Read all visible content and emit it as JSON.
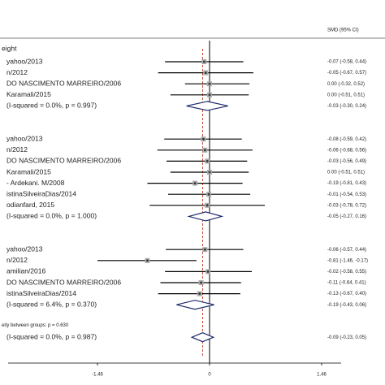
{
  "chart_data": {
    "type": "forest",
    "header": "SMD (95% CI)",
    "xlim": [
      -1.46,
      1.46
    ],
    "xticks": [
      -1.46,
      0,
      1.46
    ],
    "groups": [
      {
        "label": "eight",
        "rows": [
          {
            "label": "yahoo/2013",
            "value": -0.07,
            "ci": [
              -0.58,
              0.44
            ],
            "value_label": "-0.07 (-0.58, 0.44)"
          },
          {
            "label": "n/2012",
            "value": -0.05,
            "ci": [
              -0.67,
              0.57
            ],
            "value_label": "-0.05 (-0.67, 0.57)"
          },
          {
            "label": "DO NASCIMENTO MARREIRO/2006",
            "value": 0.0,
            "ci": [
              -0.32,
              0.52
            ],
            "value_label": "0.00 (-0.32, 0.52)"
          },
          {
            "label": "Karamali/2015",
            "value": 0.0,
            "ci": [
              -0.51,
              0.51
            ],
            "value_label": "0.00 (-0.51, 0.51)"
          }
        ],
        "subtotal": {
          "label": "(I-squared = 0.0%, p = 0.997)",
          "value": -0.03,
          "ci": [
            -0.3,
            0.24
          ],
          "value_label": "-0.03 (-0.30, 0.24)"
        }
      },
      {
        "rows": [
          {
            "label": "yahoo/2013",
            "value": -0.08,
            "ci": [
              -0.59,
              0.42
            ],
            "value_label": "-0.08 (-0.59, 0.42)"
          },
          {
            "label": "n/2012",
            "value": -0.06,
            "ci": [
              -0.68,
              0.56
            ],
            "value_label": "-0.06 (-0.68, 0.56)"
          },
          {
            "label": "DO NASCIMENTO MARREIRO/2006",
            "value": -0.03,
            "ci": [
              -0.56,
              0.49
            ],
            "value_label": "-0.03 (-0.56, 0.49)"
          },
          {
            "label": "Karamali/2015",
            "value": 0.0,
            "ci": [
              -0.51,
              0.51
            ],
            "value_label": "0.00 (-0.51, 0.51)"
          },
          {
            "label": "- Ardekani. M/2008",
            "value": -0.19,
            "ci": [
              -0.81,
              0.43
            ],
            "value_label": "-0.19 (-0.81, 0.43)"
          },
          {
            "label": "istinaSilveiraDias/2014",
            "value": -0.01,
            "ci": [
              -0.54,
              0.53
            ],
            "value_label": "-0.01 (-0.54, 0.53)"
          },
          {
            "label": "odianfard, 2015",
            "value": -0.03,
            "ci": [
              -0.78,
              0.72
            ],
            "value_label": "-0.03 (-0.78, 0.72)"
          }
        ],
        "subtotal": {
          "label": "(I-squared = 0.0%, p = 1.000)",
          "value": -0.05,
          "ci": [
            -0.27,
            0.16
          ],
          "value_label": "-0.05 (-0.27, 0.16)"
        }
      },
      {
        "rows": [
          {
            "label": "yahoo/2013",
            "value": -0.06,
            "ci": [
              -0.57,
              0.44
            ],
            "value_label": "-0.06 (-0.57, 0.44)"
          },
          {
            "label": "n/2012",
            "value": -0.81,
            "ci": [
              -1.46,
              -0.17
            ],
            "value_label": "-0.81 (-1.46, -0.17)"
          },
          {
            "label": "amilian/2016",
            "value": -0.02,
            "ci": [
              -0.58,
              0.55
            ],
            "value_label": "-0.02 (-0.58, 0.55)"
          },
          {
            "label": "DO NASCIMENTO MARREIRO/2006",
            "value": -0.11,
            "ci": [
              -0.64,
              0.41
            ],
            "value_label": "-0.11 (-0.64, 0.41)"
          },
          {
            "label": "istinaSilveiraDias/2014",
            "value": -0.13,
            "ci": [
              -0.67,
              0.4
            ],
            "value_label": "-0.13 (-0.67, 0.40)"
          }
        ],
        "subtotal": {
          "label": "(I-squared = 6.4%, p = 0.370)",
          "value": -0.19,
          "ci": [
            -0.43,
            0.06
          ],
          "value_label": "-0.19 (-0.43, 0.06)"
        }
      }
    ],
    "heterogeneity": "eity between groups: p = 0.630",
    "overall": {
      "label": "(I-squared = 0.0%, p = 0.987)",
      "value": -0.09,
      "ci": [
        -0.23,
        0.05
      ],
      "value_label": "-0.09 (-0.23, 0.05)"
    }
  }
}
